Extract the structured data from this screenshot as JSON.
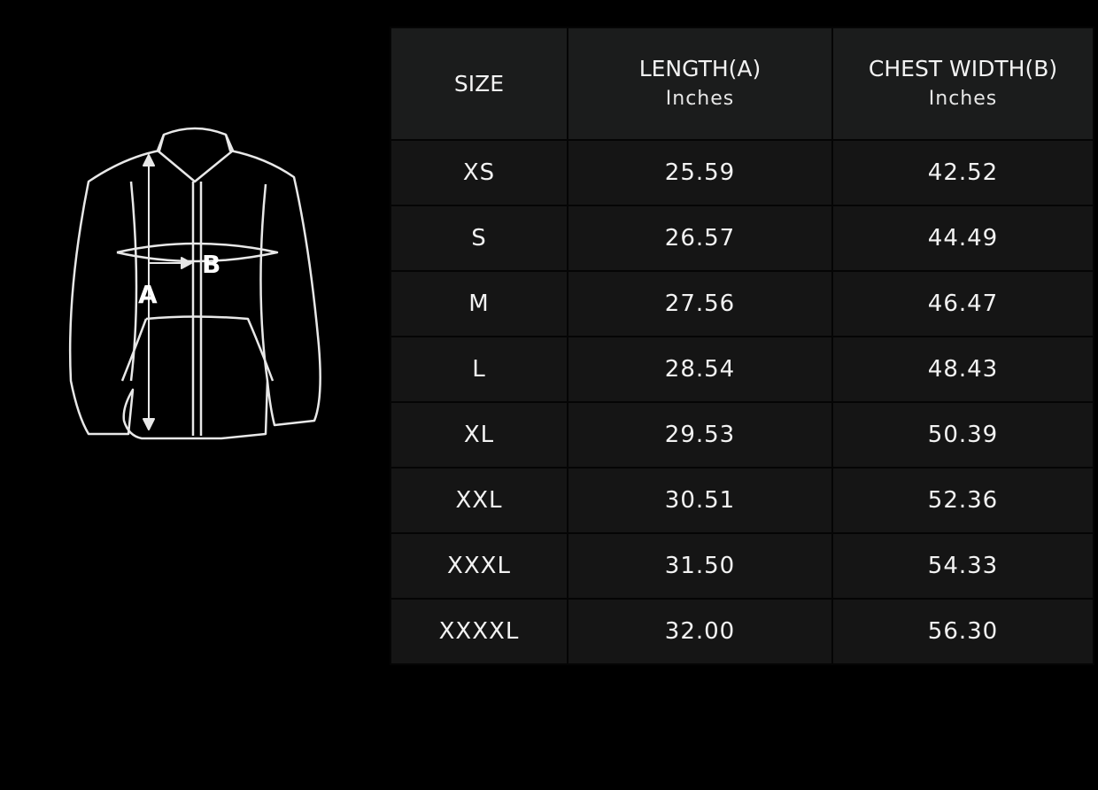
{
  "diagram": {
    "label_a": "A",
    "label_b": "B"
  },
  "table": {
    "headers": [
      {
        "title": "SIZE",
        "unit": ""
      },
      {
        "title": "LENGTH(A)",
        "unit": "Inches"
      },
      {
        "title": "CHEST WIDTH(B)",
        "unit": "Inches"
      }
    ],
    "rows": [
      [
        "XS",
        "25.59",
        "42.52"
      ],
      [
        "S",
        "26.57",
        "44.49"
      ],
      [
        "M",
        "27.56",
        "46.47"
      ],
      [
        "L",
        "28.54",
        "48.43"
      ],
      [
        "XL",
        "29.53",
        "50.39"
      ],
      [
        "XXL",
        "30.51",
        "52.36"
      ],
      [
        "XXXL",
        "31.50",
        "54.33"
      ],
      [
        "XXXXL",
        "32.00",
        "56.30"
      ]
    ]
  },
  "colors": {
    "background": "#000000",
    "header_bg": "#1b1c1c",
    "row_bg": "#151515",
    "text": "#f2f2f2"
  }
}
